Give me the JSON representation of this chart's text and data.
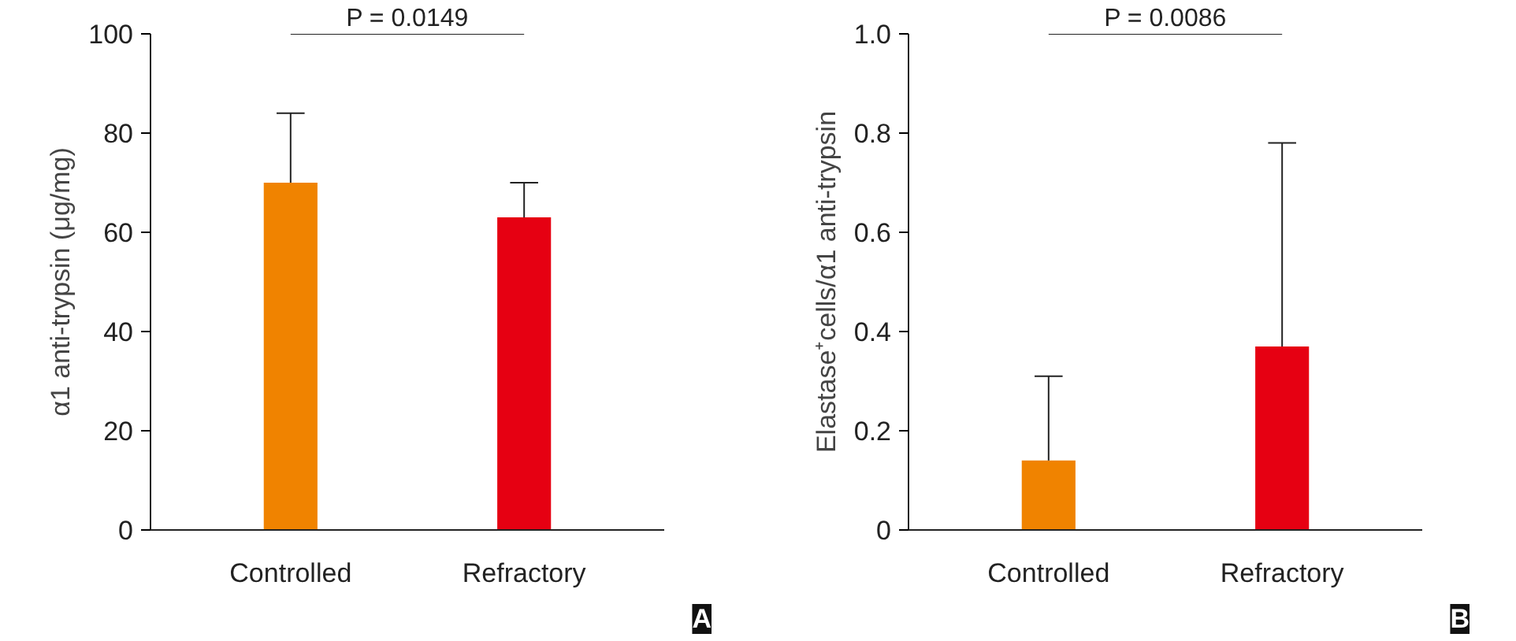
{
  "chart_data": [
    {
      "type": "bar",
      "ylabel": "α1 anti-trypsin (μg/mg)",
      "categories": [
        "Controlled",
        "Refractory"
      ],
      "values": [
        70,
        63
      ],
      "colors": [
        "#f08300",
        "#e60012"
      ],
      "errors": [
        [
          70,
          84
        ],
        [
          63,
          70
        ]
      ],
      "ylim": [
        0,
        100
      ],
      "yticks": [
        0,
        20,
        40,
        60,
        80,
        100
      ],
      "grid": false,
      "annotations": [
        "P = 0.0149",
        "A"
      ]
    },
    {
      "type": "bar",
      "ylabel": "Elastase⁺cells/α1 anti-trypsin",
      "categories": [
        "Controlled",
        "Refractory"
      ],
      "values": [
        0.14,
        0.37
      ],
      "colors": [
        "#f08300",
        "#e60012"
      ],
      "errors": [
        [
          0.14,
          0.31
        ],
        [
          0.37,
          0.78
        ]
      ],
      "ylim": [
        0,
        1
      ],
      "yticks": [
        0,
        0.2,
        0.4,
        0.6,
        0.8,
        {
          "value": 1,
          "label": "1.0"
        }
      ],
      "grid": false,
      "annotations": [
        "P = 0.0086",
        "B"
      ]
    }
  ]
}
